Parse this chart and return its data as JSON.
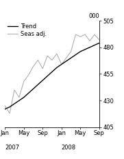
{
  "ylabel": "000",
  "ylim": [
    405,
    505
  ],
  "yticks": [
    405,
    430,
    455,
    480,
    505
  ],
  "xlim": [
    0,
    20
  ],
  "xtick_positions": [
    0,
    4,
    8,
    12,
    16,
    20
  ],
  "xtick_labels": [
    "Jan",
    "May",
    "Sep",
    "Jan",
    "May",
    "Sep"
  ],
  "year_2007_x": 0,
  "year_2008_x": 12,
  "trend_x": [
    0,
    1,
    2,
    3,
    4,
    5,
    6,
    7,
    8,
    9,
    10,
    11,
    12,
    13,
    14,
    15,
    16,
    17,
    18,
    19,
    20
  ],
  "trend_y": [
    422,
    424,
    427,
    430,
    433,
    437,
    441,
    445,
    449,
    453,
    457,
    461,
    464,
    467,
    470,
    473,
    476,
    478,
    480,
    482,
    484
  ],
  "seas_x": [
    0,
    1,
    2,
    3,
    4,
    5,
    6,
    7,
    8,
    9,
    10,
    11,
    12,
    13,
    14,
    15,
    16,
    17,
    18,
    19,
    20
  ],
  "seas_y": [
    425,
    418,
    440,
    433,
    448,
    454,
    462,
    468,
    460,
    472,
    468,
    474,
    464,
    470,
    476,
    492,
    490,
    492,
    486,
    492,
    487
  ],
  "trend_color": "#000000",
  "seas_color": "#b0b0b0",
  "trend_linewidth": 1.0,
  "seas_linewidth": 0.8,
  "legend_fontsize": 6.0,
  "tick_fontsize": 6.0,
  "year_fontsize": 6.0,
  "background_color": "#ffffff"
}
